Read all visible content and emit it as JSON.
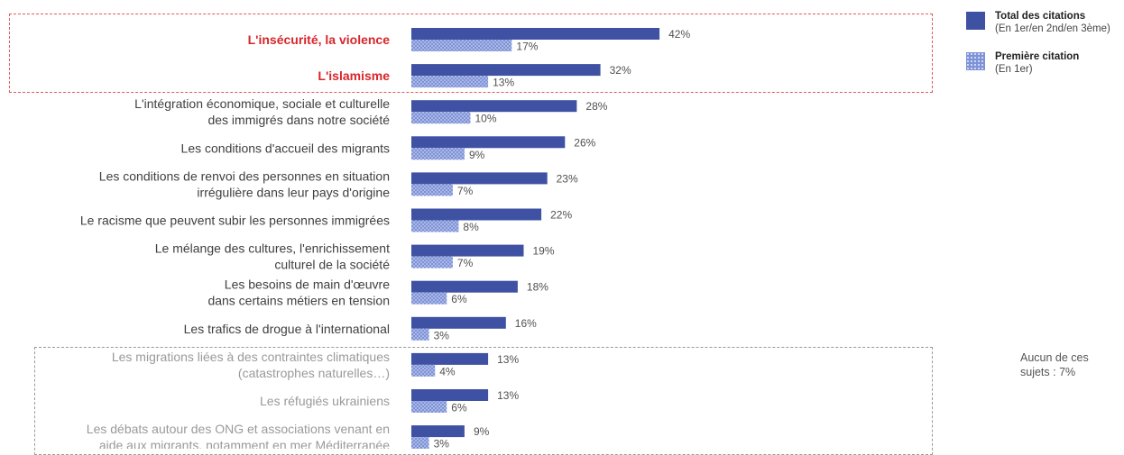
{
  "chart_data": {
    "type": "bar",
    "orientation": "horizontal",
    "title": "",
    "xlabel": "",
    "ylabel": "",
    "xlim": [
      0,
      45
    ],
    "grid": false,
    "legend_position": "top-right",
    "categories": [
      "L'insécurité, la violence",
      "L'islamisme",
      "L'intégration économique, sociale et culturelle\ndes immigrés dans notre société",
      "Les conditions d'accueil des migrants",
      "Les conditions de renvoi des personnes en situation\nirrégulière dans leur pays d'origine",
      "Le racisme que peuvent subir les personnes immigrées",
      "Le mélange des cultures, l'enrichissement\nculturel de la société",
      "Les besoins de main d'œuvre\ndans certains métiers en tension",
      "Les trafics de drogue à l'international",
      "Les migrations liées à des contraintes climatiques\n(catastrophes naturelles…)",
      "Les réfugiés ukrainiens",
      "Les débats autour des ONG et associations venant en\naide aux migrants, notamment en mer Méditerranée"
    ],
    "label_styles": [
      "highlight",
      "highlight",
      "normal",
      "normal",
      "normal",
      "normal",
      "normal",
      "normal",
      "normal",
      "muted",
      "muted",
      "muted"
    ],
    "series": [
      {
        "name": "Total des citations",
        "note": "(En 1er/en 2nd/en 3ème)",
        "values": [
          42,
          32,
          28,
          26,
          23,
          22,
          19,
          18,
          16,
          13,
          13,
          9
        ],
        "labels": [
          "42%",
          "32%",
          "28%",
          "26%",
          "23%",
          "22%",
          "19%",
          "18%",
          "16%",
          "13%",
          "13%",
          "9%"
        ]
      },
      {
        "name": "Première citation",
        "note": "(En 1er)",
        "values": [
          17,
          13,
          10,
          9,
          7,
          8,
          7,
          6,
          3,
          4,
          6,
          3
        ],
        "labels": [
          "17%",
          "13%",
          "10%",
          "9%",
          "7%",
          "8%",
          "7%",
          "6%",
          "3%",
          "4%",
          "6%",
          "3%"
        ]
      }
    ],
    "annotations": [
      "Aucun de ces\nsujets : 7%"
    ]
  },
  "colors": {
    "total": "#3f51a3",
    "first": "#7e92d6",
    "first_dots": "#e8ecff",
    "highlight_text": "#d7262b",
    "normal_text": "#404040",
    "muted_text": "#9a9a9a",
    "value_text": "#505050"
  },
  "legend": [
    {
      "name": "Total des citations",
      "sub": "(En 1er/en 2nd/en 3ème)"
    },
    {
      "name": "Première citation",
      "sub": "(En 1er)"
    }
  ],
  "note": "Aucun de ces\nsujets : 7%"
}
